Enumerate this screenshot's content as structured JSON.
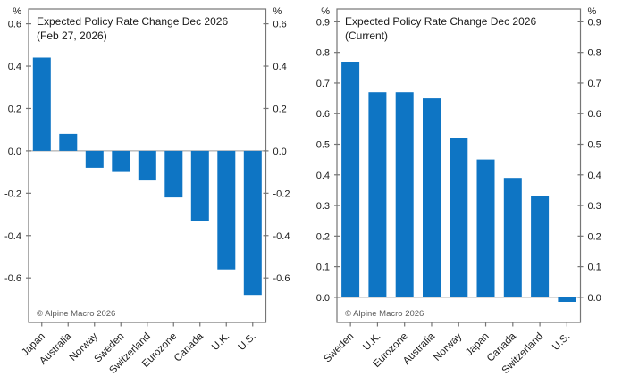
{
  "figure": {
    "background": "#ffffff",
    "copyright": "© Alpine Macro 2026"
  },
  "chart_data": [
    {
      "type": "bar",
      "title": "Expected Policy Rate Change Dec 2026",
      "subtitle": "(Feb 27, 2026)",
      "unit_label": "%",
      "copyright": "© Alpine Macro 2026",
      "categories": [
        "Japan",
        "Australia",
        "Norway",
        "Sweden",
        "Switzerland",
        "Eurozone",
        "Canada",
        "U.K.",
        "U.S."
      ],
      "values": [
        0.44,
        0.08,
        -0.08,
        -0.1,
        -0.14,
        -0.22,
        -0.33,
        -0.56,
        -0.68
      ],
      "y_ticks": [
        0.6,
        0.4,
        0.2,
        0.0,
        -0.2,
        -0.4,
        -0.6
      ],
      "ylim": [
        -0.81,
        0.67
      ],
      "xlabel": "",
      "ylabel": "%",
      "grid": false,
      "legend_position": "none",
      "bar_color": "#0e75c4",
      "axis_color": "#757575",
      "zero_line_color": "#9e9e9e",
      "text_color": "#1a1a1a",
      "copyright_color": "#5a5a5a"
    },
    {
      "type": "bar",
      "title": "Expected Policy Rate Change Dec 2026",
      "subtitle": "(Current)",
      "unit_label": "%",
      "copyright": "© Alpine Macro 2026",
      "categories": [
        "Sweden",
        "U.K.",
        "Eurozone",
        "Australia",
        "Norway",
        "Japan",
        "Canada",
        "Switzerland",
        "U.S."
      ],
      "values": [
        0.77,
        0.67,
        0.67,
        0.65,
        0.52,
        0.45,
        0.39,
        0.33,
        -0.015
      ],
      "y_ticks": [
        0.9,
        0.8,
        0.7,
        0.6,
        0.5,
        0.4,
        0.3,
        0.2,
        0.1,
        0.0
      ],
      "ylim": [
        -0.082,
        0.942
      ],
      "xlabel": "",
      "ylabel": "%",
      "grid": false,
      "legend_position": "none",
      "bar_color": "#0e75c4",
      "axis_color": "#757575",
      "zero_line_color": "#9e9e9e",
      "text_color": "#1a1a1a",
      "copyright_color": "#5a5a5a"
    }
  ]
}
